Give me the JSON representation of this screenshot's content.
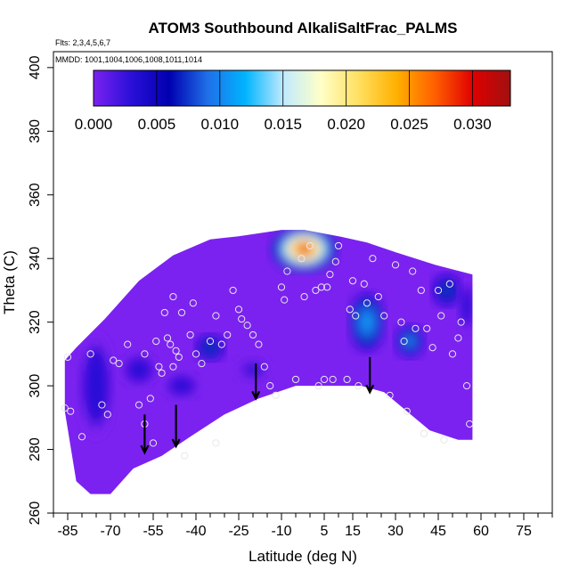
{
  "chart_data": {
    "type": "heatmap",
    "title": "ATOM3 Southbound AlkaliSaltFrac_PALMS",
    "flights_label": "Flts: 2,3,4,5,6,7",
    "dates_label": "MMDD: 1001,1004,1006,1008,1011,1014",
    "xlabel": "Latitude (deg N)",
    "ylabel": "Theta (C)",
    "xlim": [
      -90,
      85
    ],
    "ylim": [
      260,
      405
    ],
    "xticks": [
      -85,
      -70,
      -55,
      -40,
      -25,
      -10,
      5,
      15,
      30,
      45,
      60,
      75
    ],
    "yticks": [
      260,
      280,
      300,
      320,
      340,
      360,
      380,
      400
    ],
    "colorbar": {
      "min": 0.0,
      "max": 0.033,
      "ticks": [
        "0.000",
        "0.005",
        "0.010",
        "0.015",
        "0.020",
        "0.025",
        "0.030"
      ],
      "tick_values": [
        0.0,
        0.005,
        0.01,
        0.015,
        0.02,
        0.025,
        0.03
      ],
      "colors": [
        "#7b22f0",
        "#2a0fd8",
        "#0000b0",
        "#1f6fe8",
        "#00b4ff",
        "#bfeaff",
        "#ffffc8",
        "#ffe060",
        "#ffb000",
        "#ff6000",
        "#e00000",
        "#a01010"
      ]
    },
    "field_fill": "#7b22f0",
    "field_lower_boundary": [
      {
        "lat": -86,
        "theta": 292
      },
      {
        "lat": -82,
        "theta": 270
      },
      {
        "lat": -77,
        "theta": 266
      },
      {
        "lat": -70,
        "theta": 266
      },
      {
        "lat": -62,
        "theta": 274
      },
      {
        "lat": -52,
        "theta": 278
      },
      {
        "lat": -42,
        "theta": 284
      },
      {
        "lat": -30,
        "theta": 291
      },
      {
        "lat": -18,
        "theta": 296
      },
      {
        "lat": -5,
        "theta": 300
      },
      {
        "lat": 8,
        "theta": 300
      },
      {
        "lat": 18,
        "theta": 300
      },
      {
        "lat": 26,
        "theta": 298
      },
      {
        "lat": 34,
        "theta": 292
      },
      {
        "lat": 42,
        "theta": 286
      },
      {
        "lat": 52,
        "theta": 283
      },
      {
        "lat": 57,
        "theta": 283
      }
    ],
    "field_upper_boundary": [
      {
        "lat": 57,
        "theta": 335
      },
      {
        "lat": 44,
        "theta": 338
      },
      {
        "lat": 30,
        "theta": 342
      },
      {
        "lat": 20,
        "theta": 345
      },
      {
        "lat": 10,
        "theta": 347
      },
      {
        "lat": -2,
        "theta": 349
      },
      {
        "lat": -10,
        "theta": 349
      },
      {
        "lat": -25,
        "theta": 347
      },
      {
        "lat": -35,
        "theta": 346
      },
      {
        "lat": -48,
        "theta": 341
      },
      {
        "lat": -60,
        "theta": 333
      },
      {
        "lat": -72,
        "theta": 321
      },
      {
        "lat": -82,
        "theta": 312
      },
      {
        "lat": -86,
        "theta": 308
      }
    ],
    "high_value_regions": [
      {
        "lat": -2,
        "theta": 343,
        "value": 0.031,
        "rx_deg": 11,
        "ry_theta": 7
      },
      {
        "lat": 20,
        "theta": 320,
        "value": 0.013,
        "rx_deg": 6,
        "ry_theta": 9
      },
      {
        "lat": 35,
        "theta": 314,
        "value": 0.011,
        "rx_deg": 5,
        "ry_theta": 5
      },
      {
        "lat": 48,
        "theta": 330,
        "value": 0.009,
        "rx_deg": 5,
        "ry_theta": 5
      },
      {
        "lat": -35,
        "theta": 312,
        "value": 0.009,
        "rx_deg": 5,
        "ry_theta": 4
      },
      {
        "lat": -75,
        "theta": 300,
        "value": 0.004,
        "rx_deg": 6,
        "ry_theta": 16
      },
      {
        "lat": -60,
        "theta": 305,
        "value": 0.004,
        "rx_deg": 6,
        "ry_theta": 5
      },
      {
        "lat": -45,
        "theta": 300,
        "value": 0.004,
        "rx_deg": 6,
        "ry_theta": 4
      },
      {
        "lat": -20,
        "theta": 305,
        "value": 0.003,
        "rx_deg": 6,
        "ry_theta": 4
      },
      {
        "lat": 55,
        "theta": 325,
        "value": 0.004,
        "rx_deg": 3,
        "ry_theta": 8
      }
    ],
    "sample_points": [
      {
        "lat": -86,
        "theta": 293
      },
      {
        "lat": -85,
        "theta": 309
      },
      {
        "lat": -84,
        "theta": 292
      },
      {
        "lat": -80,
        "theta": 284
      },
      {
        "lat": -77,
        "theta": 310
      },
      {
        "lat": -73,
        "theta": 294
      },
      {
        "lat": -71,
        "theta": 291
      },
      {
        "lat": -69,
        "theta": 308
      },
      {
        "lat": -67,
        "theta": 307
      },
      {
        "lat": -64,
        "theta": 313
      },
      {
        "lat": -60,
        "theta": 294
      },
      {
        "lat": -58,
        "theta": 310
      },
      {
        "lat": -58,
        "theta": 288
      },
      {
        "lat": -56,
        "theta": 296
      },
      {
        "lat": -55,
        "theta": 282
      },
      {
        "lat": -54,
        "theta": 314
      },
      {
        "lat": -53,
        "theta": 306
      },
      {
        "lat": -52,
        "theta": 304
      },
      {
        "lat": -51,
        "theta": 323
      },
      {
        "lat": -50,
        "theta": 315
      },
      {
        "lat": -49,
        "theta": 313
      },
      {
        "lat": -48,
        "theta": 306
      },
      {
        "lat": -48,
        "theta": 328
      },
      {
        "lat": -47,
        "theta": 311
      },
      {
        "lat": -46,
        "theta": 309
      },
      {
        "lat": -45,
        "theta": 323
      },
      {
        "lat": -44,
        "theta": 278
      },
      {
        "lat": -42,
        "theta": 316
      },
      {
        "lat": -41,
        "theta": 326
      },
      {
        "lat": -40,
        "theta": 310
      },
      {
        "lat": -38,
        "theta": 307
      },
      {
        "lat": -35,
        "theta": 314
      },
      {
        "lat": -33,
        "theta": 282
      },
      {
        "lat": -33,
        "theta": 322
      },
      {
        "lat": -31,
        "theta": 313
      },
      {
        "lat": -29,
        "theta": 316
      },
      {
        "lat": -27,
        "theta": 330
      },
      {
        "lat": -25,
        "theta": 324
      },
      {
        "lat": -24,
        "theta": 321
      },
      {
        "lat": -22,
        "theta": 319
      },
      {
        "lat": -20,
        "theta": 316
      },
      {
        "lat": -18,
        "theta": 313
      },
      {
        "lat": -16,
        "theta": 306
      },
      {
        "lat": -14,
        "theta": 300
      },
      {
        "lat": -12,
        "theta": 297
      },
      {
        "lat": -10,
        "theta": 331
      },
      {
        "lat": -9,
        "theta": 327
      },
      {
        "lat": -8,
        "theta": 336
      },
      {
        "lat": -5,
        "theta": 302
      },
      {
        "lat": -3,
        "theta": 340
      },
      {
        "lat": -2,
        "theta": 328
      },
      {
        "lat": 0,
        "theta": 344
      },
      {
        "lat": 2,
        "theta": 330
      },
      {
        "lat": 3,
        "theta": 300
      },
      {
        "lat": 4,
        "theta": 331
      },
      {
        "lat": 5,
        "theta": 302
      },
      {
        "lat": 6,
        "theta": 331
      },
      {
        "lat": 7,
        "theta": 335
      },
      {
        "lat": 8,
        "theta": 302
      },
      {
        "lat": 9,
        "theta": 339
      },
      {
        "lat": 10,
        "theta": 344
      },
      {
        "lat": 13,
        "theta": 302
      },
      {
        "lat": 14,
        "theta": 324
      },
      {
        "lat": 15,
        "theta": 333
      },
      {
        "lat": 16,
        "theta": 322
      },
      {
        "lat": 17,
        "theta": 300
      },
      {
        "lat": 19,
        "theta": 332
      },
      {
        "lat": 20,
        "theta": 326
      },
      {
        "lat": 22,
        "theta": 340
      },
      {
        "lat": 24,
        "theta": 328
      },
      {
        "lat": 26,
        "theta": 322
      },
      {
        "lat": 28,
        "theta": 297
      },
      {
        "lat": 30,
        "theta": 338
      },
      {
        "lat": 32,
        "theta": 320
      },
      {
        "lat": 33,
        "theta": 314
      },
      {
        "lat": 34,
        "theta": 292
      },
      {
        "lat": 36,
        "theta": 336
      },
      {
        "lat": 37,
        "theta": 318
      },
      {
        "lat": 39,
        "theta": 330
      },
      {
        "lat": 40,
        "theta": 285
      },
      {
        "lat": 41,
        "theta": 318
      },
      {
        "lat": 43,
        "theta": 312
      },
      {
        "lat": 45,
        "theta": 330
      },
      {
        "lat": 46,
        "theta": 322
      },
      {
        "lat": 47,
        "theta": 283
      },
      {
        "lat": 49,
        "theta": 332
      },
      {
        "lat": 50,
        "theta": 310
      },
      {
        "lat": 52,
        "theta": 315
      },
      {
        "lat": 53,
        "theta": 320
      },
      {
        "lat": 55,
        "theta": 300
      },
      {
        "lat": 56,
        "theta": 288
      }
    ],
    "arrows": [
      {
        "lat": -58,
        "theta_top": 291,
        "theta_tip": 279
      },
      {
        "lat": -47,
        "theta_top": 294,
        "theta_tip": 281
      },
      {
        "lat": -19,
        "theta_top": 307,
        "theta_tip": 296
      },
      {
        "lat": 21,
        "theta_top": 309,
        "theta_tip": 298
      }
    ]
  }
}
